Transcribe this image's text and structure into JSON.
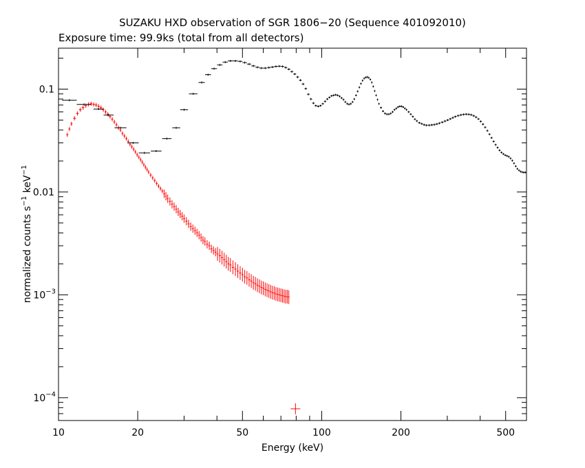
{
  "chart_data": {
    "type": "scatter",
    "title": "SUZAKU HXD observation of SGR 1806−20 (Sequence 401092010)",
    "subtitle": "Exposure time: 99.9ks (total from all detectors)",
    "xlabel": "Energy (keV)",
    "ylabel_parts": {
      "a": "normalized counts s",
      "b": "−1",
      "c": " keV",
      "d": "−1"
    },
    "xscale": "log",
    "yscale": "log",
    "xlim": [
      10,
      600
    ],
    "ylim": [
      6e-05,
      0.25
    ],
    "x_ticks": [
      {
        "value": 10,
        "label": "10"
      },
      {
        "value": 20,
        "label": "20"
      },
      {
        "value": 50,
        "label": "50"
      },
      {
        "value": 100,
        "label": "100"
      },
      {
        "value": 200,
        "label": "200"
      },
      {
        "value": 500,
        "label": "500"
      }
    ],
    "y_ticks": [
      {
        "value": 0.1,
        "label": "0.1"
      },
      {
        "value": 0.01,
        "label": "0.01"
      },
      {
        "value": 0.001,
        "base": "10",
        "exp": "−3"
      },
      {
        "value": 0.0001,
        "base": "10",
        "exp": "−4"
      }
    ],
    "series": [
      {
        "color": "#ff0000",
        "marker": "cross",
        "points": [
          [
            10.8,
            0.036
          ],
          [
            11.0,
            0.041
          ],
          [
            11.2,
            0.046
          ],
          [
            11.5,
            0.052
          ],
          [
            11.8,
            0.058
          ],
          [
            12.1,
            0.063
          ],
          [
            12.4,
            0.066
          ],
          [
            12.7,
            0.069
          ],
          [
            13.0,
            0.071
          ],
          [
            13.3,
            0.072
          ],
          [
            13.6,
            0.071
          ],
          [
            13.9,
            0.07
          ],
          [
            14.2,
            0.068
          ],
          [
            14.5,
            0.066
          ],
          [
            14.8,
            0.063
          ],
          [
            15.1,
            0.06
          ],
          [
            15.4,
            0.057
          ],
          [
            15.7,
            0.054
          ],
          [
            16.0,
            0.051
          ],
          [
            16.3,
            0.048
          ],
          [
            16.6,
            0.045
          ],
          [
            16.9,
            0.042
          ],
          [
            17.2,
            0.04
          ],
          [
            17.5,
            0.037
          ],
          [
            17.8,
            0.035
          ],
          [
            18.1,
            0.033
          ],
          [
            18.4,
            0.031
          ],
          [
            18.7,
            0.029
          ],
          [
            19.0,
            0.0275
          ],
          [
            19.3,
            0.026
          ],
          [
            19.6,
            0.0245
          ],
          [
            19.9,
            0.023
          ],
          [
            20.2,
            0.0218
          ],
          [
            20.5,
            0.0206
          ],
          [
            20.8,
            0.0195
          ],
          [
            21.1,
            0.0184
          ],
          [
            21.4,
            0.0174
          ],
          [
            21.7,
            0.0165
          ],
          [
            22.0,
            0.0156
          ],
          [
            22.4,
            0.0146
          ],
          [
            22.8,
            0.0137
          ],
          [
            23.2,
            0.0129
          ],
          [
            23.6,
            0.0121
          ],
          [
            24.0,
            0.0114
          ],
          [
            24.4,
            0.0108
          ],
          [
            24.8,
            0.0102
          ],
          [
            25.2,
            0.0096
          ],
          [
            25.6,
            0.0091
          ],
          [
            26.0,
            0.0086
          ],
          [
            26.5,
            0.0081
          ],
          [
            27.0,
            0.0076
          ],
          [
            27.5,
            0.0072
          ],
          [
            28.0,
            0.0068
          ],
          [
            28.5,
            0.0064
          ],
          [
            29.0,
            0.0061
          ],
          [
            29.5,
            0.0058
          ],
          [
            30.0,
            0.0055
          ],
          [
            30.6,
            0.0052
          ],
          [
            31.2,
            0.0049
          ],
          [
            31.8,
            0.0046
          ],
          [
            32.4,
            0.0044
          ],
          [
            33.0,
            0.0042
          ],
          [
            33.6,
            0.004
          ],
          [
            34.2,
            0.0038
          ],
          [
            34.8,
            0.0036
          ],
          [
            35.4,
            0.0034
          ],
          [
            36.0,
            0.0033
          ],
          [
            36.7,
            0.0031
          ],
          [
            37.4,
            0.003
          ],
          [
            38.1,
            0.0028
          ],
          [
            38.8,
            0.0027
          ],
          [
            39.5,
            0.0026
          ],
          [
            40.2,
            0.0025
          ],
          [
            41.0,
            0.0024
          ],
          [
            41.8,
            0.0023
          ],
          [
            42.6,
            0.0022
          ],
          [
            43.4,
            0.0021
          ],
          [
            44.2,
            0.002
          ],
          [
            45.0,
            0.00195
          ],
          [
            46.0,
            0.00185
          ],
          [
            47.0,
            0.00178
          ],
          [
            48.0,
            0.0017
          ],
          [
            49.0,
            0.00163
          ],
          [
            50.0,
            0.00157
          ],
          [
            51.0,
            0.0015
          ],
          [
            52.0,
            0.00146
          ],
          [
            53.0,
            0.0014
          ],
          [
            54.0,
            0.00136
          ],
          [
            55.0,
            0.00131
          ],
          [
            56.0,
            0.00128
          ],
          [
            57.0,
            0.00124
          ],
          [
            58.0,
            0.00121
          ],
          [
            59.0,
            0.00118
          ],
          [
            60.0,
            0.00116
          ],
          [
            61.0,
            0.00113
          ],
          [
            62.0,
            0.00111
          ],
          [
            63.0,
            0.00109
          ],
          [
            64.0,
            0.00107
          ],
          [
            65.0,
            0.00105
          ],
          [
            66.0,
            0.00104
          ],
          [
            67.0,
            0.00102
          ],
          [
            68.0,
            0.00101
          ],
          [
            69.0,
            0.001
          ],
          [
            70.0,
            0.00099
          ],
          [
            71.0,
            0.00098
          ],
          [
            72.0,
            0.00097
          ],
          [
            73.0,
            0.00096
          ],
          [
            74.0,
            0.00096
          ],
          [
            75.0,
            0.00095
          ],
          [
            79.5,
            7.8e-05
          ]
        ]
      },
      {
        "color": "#000000",
        "marker": "cross",
        "points": [
          [
            11.0,
            0.078
          ],
          [
            12.5,
            0.071
          ],
          [
            14.2,
            0.064
          ],
          [
            15.5,
            0.056
          ],
          [
            17.2,
            0.042
          ],
          [
            19.2,
            0.03
          ],
          [
            21.2,
            0.024
          ],
          [
            23.5,
            0.025
          ],
          [
            25.8,
            0.033
          ],
          [
            28.0,
            0.042
          ],
          [
            30.0,
            0.063
          ],
          [
            32.5,
            0.09
          ],
          [
            35.0,
            0.116
          ],
          [
            37.0,
            0.138
          ],
          [
            39.0,
            0.158
          ],
          [
            41.0,
            0.172
          ],
          [
            43.0,
            0.183
          ],
          [
            45.0,
            0.188
          ],
          [
            47.0,
            0.188
          ],
          [
            49.0,
            0.186
          ],
          [
            51.0,
            0.181
          ],
          [
            53.0,
            0.175
          ],
          [
            55.0,
            0.168
          ],
          [
            57.0,
            0.163
          ],
          [
            59.0,
            0.16
          ],
          [
            61.0,
            0.16
          ],
          [
            63.0,
            0.162
          ],
          [
            65.0,
            0.164
          ],
          [
            67.0,
            0.166
          ],
          [
            69.0,
            0.167
          ],
          [
            71.0,
            0.166
          ],
          [
            73.0,
            0.162
          ],
          [
            75.0,
            0.156
          ],
          [
            77.0,
            0.148
          ],
          [
            79.0,
            0.14
          ],
          [
            81.0,
            0.131
          ],
          [
            83.0,
            0.122
          ],
          [
            85.0,
            0.112
          ],
          [
            87.0,
            0.101
          ],
          [
            89.0,
            0.089
          ],
          [
            91.0,
            0.08
          ],
          [
            93.0,
            0.073
          ],
          [
            95.0,
            0.069
          ],
          [
            97.0,
            0.068
          ],
          [
            99.0,
            0.069
          ],
          [
            101.0,
            0.072
          ],
          [
            103.0,
            0.076
          ],
          [
            105.0,
            0.08
          ],
          [
            107.0,
            0.083
          ],
          [
            109.0,
            0.086
          ],
          [
            111.0,
            0.087
          ],
          [
            113.0,
            0.088
          ],
          [
            115.0,
            0.087
          ],
          [
            117.0,
            0.085
          ],
          [
            119.0,
            0.082
          ],
          [
            121.0,
            0.079
          ],
          [
            123.0,
            0.075
          ],
          [
            125.0,
            0.072
          ],
          [
            127.0,
            0.071
          ],
          [
            129.0,
            0.072
          ],
          [
            131.0,
            0.075
          ],
          [
            133.0,
            0.08
          ],
          [
            135.0,
            0.087
          ],
          [
            137.0,
            0.095
          ],
          [
            139.0,
            0.104
          ],
          [
            141.0,
            0.113
          ],
          [
            143.0,
            0.121
          ],
          [
            145.0,
            0.127
          ],
          [
            147.0,
            0.13
          ],
          [
            149.0,
            0.131
          ],
          [
            151.0,
            0.129
          ],
          [
            153.0,
            0.124
          ],
          [
            155.0,
            0.116
          ],
          [
            157.0,
            0.106
          ],
          [
            159.0,
            0.096
          ],
          [
            161.0,
            0.087
          ],
          [
            163.0,
            0.079
          ],
          [
            165.0,
            0.072
          ],
          [
            168.0,
            0.066
          ],
          [
            171.0,
            0.061
          ],
          [
            174.0,
            0.058
          ],
          [
            177.0,
            0.057
          ],
          [
            180.0,
            0.057
          ],
          [
            183.0,
            0.058
          ],
          [
            186.0,
            0.06
          ],
          [
            189.0,
            0.063
          ],
          [
            192.0,
            0.065
          ],
          [
            195.0,
            0.067
          ],
          [
            198.0,
            0.068
          ],
          [
            201.0,
            0.068
          ],
          [
            204.0,
            0.067
          ],
          [
            207.0,
            0.065
          ],
          [
            210.0,
            0.063
          ],
          [
            214.0,
            0.06
          ],
          [
            218.0,
            0.057
          ],
          [
            222.0,
            0.054
          ],
          [
            226.0,
            0.051
          ],
          [
            230.0,
            0.049
          ],
          [
            235.0,
            0.047
          ],
          [
            240.0,
            0.046
          ],
          [
            245.0,
            0.045
          ],
          [
            250.0,
            0.0445
          ],
          [
            256.0,
            0.0445
          ],
          [
            262.0,
            0.0448
          ],
          [
            268.0,
            0.0452
          ],
          [
            274.0,
            0.0458
          ],
          [
            280.0,
            0.0466
          ],
          [
            287.0,
            0.0476
          ],
          [
            294.0,
            0.0488
          ],
          [
            301.0,
            0.05
          ],
          [
            308.0,
            0.0513
          ],
          [
            315.0,
            0.0527
          ],
          [
            322.0,
            0.054
          ],
          [
            330.0,
            0.0552
          ],
          [
            338.0,
            0.0561
          ],
          [
            346.0,
            0.0567
          ],
          [
            354.0,
            0.057
          ],
          [
            362.0,
            0.0568
          ],
          [
            370.0,
            0.0562
          ],
          [
            378.0,
            0.055
          ],
          [
            386.0,
            0.0534
          ],
          [
            394.0,
            0.0512
          ],
          [
            402.0,
            0.0485
          ],
          [
            410.0,
            0.0456
          ],
          [
            418.0,
            0.0425
          ],
          [
            426.0,
            0.0394
          ],
          [
            434.0,
            0.0364
          ],
          [
            442.0,
            0.0336
          ],
          [
            450.0,
            0.031
          ],
          [
            458.0,
            0.0288
          ],
          [
            466.0,
            0.027
          ],
          [
            474.0,
            0.0254
          ],
          [
            482.0,
            0.0242
          ],
          [
            490.0,
            0.0234
          ],
          [
            498.0,
            0.0228
          ],
          [
            506.0,
            0.0224
          ],
          [
            514.0,
            0.022
          ],
          [
            522.0,
            0.0212
          ],
          [
            530.0,
            0.0202
          ],
          [
            538.0,
            0.019
          ],
          [
            546.0,
            0.0178
          ],
          [
            554.0,
            0.0168
          ],
          [
            562.0,
            0.0162
          ],
          [
            570.0,
            0.0158
          ],
          [
            578.0,
            0.0156
          ],
          [
            586.0,
            0.0155
          ],
          [
            594.0,
            0.0155
          ]
        ]
      }
    ]
  }
}
